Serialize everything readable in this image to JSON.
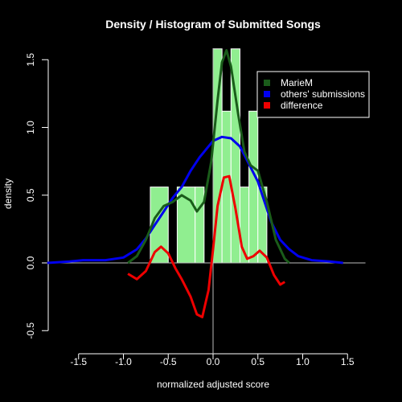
{
  "chart_data": {
    "type": "line",
    "title": "Density / Histogram of Submitted Songs",
    "xlabel": "normalized adjusted score",
    "ylabel": "density",
    "xlim": [
      -1.85,
      1.7
    ],
    "ylim": [
      -0.5,
      1.6
    ],
    "xticks": [
      -1.5,
      -1.0,
      -0.5,
      0.0,
      0.5,
      1.0,
      1.5
    ],
    "xtick_labels": [
      "-1.5",
      "-1.0",
      "-0.5",
      "0.0",
      "0.5",
      "1.0",
      "1.5"
    ],
    "yticks": [
      -0.5,
      0.0,
      0.5,
      1.0,
      1.5
    ],
    "ytick_labels": [
      "-0.5",
      "0.0",
      "0.5",
      "1.0",
      "1.5"
    ],
    "grid": false,
    "legend_position": "top-right",
    "legend": [
      {
        "label": "MarieM",
        "color": "#1a5c1a"
      },
      {
        "label": "others' submissions",
        "color": "#0000ee"
      },
      {
        "label": "difference",
        "color": "#ee0000"
      }
    ],
    "histogram": {
      "color": "#90ee90",
      "bins": [
        {
          "x0": -0.7,
          "x1": -0.5,
          "y": 0.56
        },
        {
          "x0": -0.4,
          "x1": -0.2,
          "y": 0.56
        },
        {
          "x0": -0.2,
          "x1": -0.1,
          "y": 0.56
        },
        {
          "x0": 0.0,
          "x1": 0.1,
          "y": 1.58
        },
        {
          "x0": 0.1,
          "x1": 0.2,
          "y": 1.12
        },
        {
          "x0": 0.2,
          "x1": 0.3,
          "y": 1.58
        },
        {
          "x0": 0.3,
          "x1": 0.4,
          "y": 0.56
        },
        {
          "x0": 0.4,
          "x1": 0.5,
          "y": 1.12
        },
        {
          "x0": 0.5,
          "x1": 0.6,
          "y": 0.56
        }
      ]
    },
    "series": [
      {
        "name": "others' submissions",
        "color": "#0000ee",
        "points": [
          [
            -1.85,
            0.0
          ],
          [
            -1.6,
            0.01
          ],
          [
            -1.45,
            0.02
          ],
          [
            -1.2,
            0.02
          ],
          [
            -1.0,
            0.04
          ],
          [
            -0.85,
            0.1
          ],
          [
            -0.75,
            0.18
          ],
          [
            -0.65,
            0.28
          ],
          [
            -0.55,
            0.38
          ],
          [
            -0.45,
            0.48
          ],
          [
            -0.35,
            0.56
          ],
          [
            -0.25,
            0.68
          ],
          [
            -0.15,
            0.78
          ],
          [
            -0.05,
            0.86
          ],
          [
            0.0,
            0.9
          ],
          [
            0.1,
            0.93
          ],
          [
            0.2,
            0.92
          ],
          [
            0.3,
            0.86
          ],
          [
            0.4,
            0.73
          ],
          [
            0.5,
            0.6
          ],
          [
            0.55,
            0.5
          ],
          [
            0.65,
            0.3
          ],
          [
            0.75,
            0.17
          ],
          [
            0.85,
            0.1
          ],
          [
            0.95,
            0.05
          ],
          [
            1.1,
            0.02
          ],
          [
            1.3,
            0.01
          ],
          [
            1.45,
            0.0
          ]
        ]
      },
      {
        "name": "MarieM",
        "color": "#1a5c1a",
        "points": [
          [
            -0.95,
            0.0
          ],
          [
            -0.85,
            0.05
          ],
          [
            -0.75,
            0.17
          ],
          [
            -0.65,
            0.33
          ],
          [
            -0.55,
            0.42
          ],
          [
            -0.45,
            0.45
          ],
          [
            -0.35,
            0.5
          ],
          [
            -0.25,
            0.46
          ],
          [
            -0.18,
            0.38
          ],
          [
            -0.1,
            0.45
          ],
          [
            -0.02,
            0.75
          ],
          [
            0.05,
            1.2
          ],
          [
            0.1,
            1.48
          ],
          [
            0.15,
            1.57
          ],
          [
            0.2,
            1.45
          ],
          [
            0.28,
            1.1
          ],
          [
            0.35,
            0.82
          ],
          [
            0.42,
            0.72
          ],
          [
            0.5,
            0.68
          ],
          [
            0.6,
            0.45
          ],
          [
            0.7,
            0.17
          ],
          [
            0.8,
            0.03
          ],
          [
            0.85,
            0.0
          ]
        ]
      },
      {
        "name": "difference",
        "color": "#ee0000",
        "points": [
          [
            -0.95,
            -0.08
          ],
          [
            -0.85,
            -0.12
          ],
          [
            -0.75,
            -0.06
          ],
          [
            -0.65,
            0.08
          ],
          [
            -0.58,
            0.12
          ],
          [
            -0.5,
            0.07
          ],
          [
            -0.42,
            -0.04
          ],
          [
            -0.35,
            -0.12
          ],
          [
            -0.25,
            -0.25
          ],
          [
            -0.18,
            -0.38
          ],
          [
            -0.12,
            -0.4
          ],
          [
            -0.05,
            -0.2
          ],
          [
            0.0,
            0.1
          ],
          [
            0.05,
            0.42
          ],
          [
            0.12,
            0.63
          ],
          [
            0.18,
            0.64
          ],
          [
            0.25,
            0.4
          ],
          [
            0.32,
            0.12
          ],
          [
            0.38,
            0.03
          ],
          [
            0.45,
            0.05
          ],
          [
            0.52,
            0.09
          ],
          [
            0.6,
            0.04
          ],
          [
            0.68,
            -0.09
          ],
          [
            0.75,
            -0.16
          ],
          [
            0.8,
            -0.14
          ]
        ]
      }
    ]
  }
}
